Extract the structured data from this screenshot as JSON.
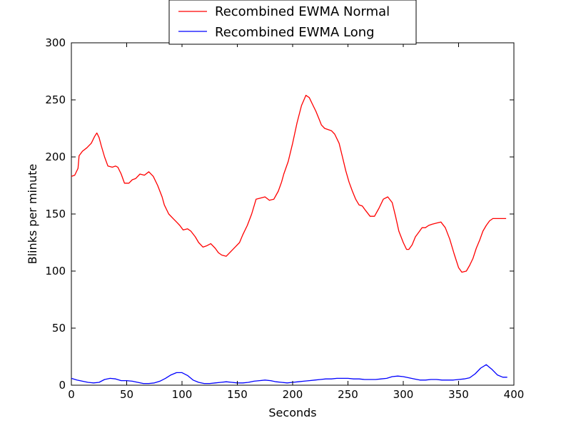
{
  "chart_data": {
    "type": "line",
    "xlabel": "Seconds",
    "ylabel": "Blinks per minute",
    "xlim": [
      0,
      400
    ],
    "ylim": [
      0,
      300
    ],
    "xticks": [
      "0",
      "50",
      "100",
      "150",
      "200",
      "250",
      "300",
      "350",
      "400"
    ],
    "yticks": [
      "0",
      "50",
      "100",
      "150",
      "200",
      "250",
      "300"
    ],
    "grid": false,
    "legend_position": "top-center (above plot)",
    "series": [
      {
        "name": "Recombined EWMA Normal",
        "color": "#ff0000",
        "x": [
          0,
          3,
          6,
          7,
          10,
          14,
          18,
          21,
          23,
          25,
          27,
          30,
          33,
          37,
          40,
          42,
          45,
          48,
          52,
          55,
          58,
          62,
          66,
          70,
          74,
          78,
          82,
          84,
          88,
          92,
          95,
          98,
          101,
          105,
          108,
          112,
          115,
          119,
          122,
          126,
          130,
          133,
          136,
          140,
          144,
          148,
          152,
          155,
          159,
          163,
          167,
          171,
          175,
          179,
          183,
          187,
          190,
          192,
          196,
          200,
          204,
          208,
          212,
          215,
          218,
          221,
          224,
          226,
          229,
          232,
          235,
          238,
          242,
          245,
          248,
          251,
          254,
          257,
          260,
          263,
          266,
          270,
          274,
          278,
          282,
          286,
          290,
          293,
          296,
          300,
          303,
          305,
          308,
          311,
          314,
          317,
          320,
          323,
          326,
          330,
          334,
          338,
          342,
          346,
          350,
          353,
          357,
          360,
          363,
          366,
          369,
          372,
          375,
          378,
          381,
          384,
          387,
          390,
          393
        ],
        "y": [
          183,
          184,
          190,
          201,
          205,
          208,
          212,
          218,
          221,
          217,
          210,
          200,
          192,
          191,
          192,
          191,
          185,
          177,
          177,
          180,
          181,
          185,
          184,
          187,
          183,
          175,
          165,
          158,
          150,
          146,
          143,
          140,
          136,
          137,
          135,
          130,
          125,
          121,
          122,
          124,
          120,
          116,
          114,
          113,
          117,
          121,
          125,
          132,
          140,
          150,
          163,
          164,
          165,
          162,
          163,
          170,
          178,
          185,
          196,
          212,
          230,
          245,
          254,
          252,
          246,
          240,
          233,
          228,
          225,
          224,
          223,
          220,
          212,
          200,
          188,
          178,
          170,
          163,
          158,
          157,
          153,
          148,
          148,
          155,
          163,
          165,
          160,
          148,
          135,
          125,
          119,
          119,
          123,
          130,
          134,
          138,
          138,
          140,
          141,
          142,
          143,
          138,
          128,
          115,
          103,
          99,
          100,
          105,
          111,
          120,
          127,
          135,
          140,
          144,
          146,
          146,
          146,
          146,
          146
        ],
        "note_ignore": ""
      },
      {
        "name": "Recombined EWMA Long",
        "color": "#0000ff",
        "x": [
          0,
          5,
          10,
          15,
          20,
          25,
          30,
          35,
          40,
          45,
          50,
          55,
          60,
          65,
          70,
          75,
          80,
          85,
          90,
          95,
          100,
          105,
          110,
          115,
          120,
          125,
          130,
          135,
          140,
          145,
          150,
          155,
          160,
          165,
          170,
          175,
          180,
          185,
          190,
          195,
          200,
          205,
          210,
          215,
          220,
          225,
          230,
          235,
          240,
          245,
          250,
          255,
          260,
          265,
          270,
          275,
          280,
          285,
          290,
          295,
          300,
          305,
          310,
          315,
          320,
          325,
          330,
          335,
          340,
          345,
          350,
          355,
          360,
          365,
          370,
          375,
          380,
          385,
          390,
          394
        ],
        "y": [
          6,
          4.5,
          3.5,
          2.5,
          2,
          2.5,
          5,
          6,
          5.5,
          4,
          4,
          3.5,
          2.5,
          1.5,
          1.5,
          2,
          3.5,
          6,
          9,
          11,
          11,
          8.5,
          4.5,
          2.5,
          1.5,
          1.5,
          2,
          2.5,
          3,
          2.5,
          2,
          2,
          2.5,
          3.5,
          4,
          4.5,
          4,
          3,
          2.5,
          2,
          2.5,
          3,
          3.5,
          4,
          4.5,
          5,
          5.5,
          5.5,
          6,
          6,
          6,
          5.5,
          5.5,
          5,
          5,
          5,
          5.5,
          6,
          7.5,
          8,
          7.5,
          6.5,
          5.5,
          4.5,
          4.5,
          5,
          5,
          4.5,
          4.5,
          4.5,
          5,
          5.5,
          6.5,
          10,
          15,
          18,
          14,
          9,
          7,
          7
        ]
      }
    ]
  }
}
